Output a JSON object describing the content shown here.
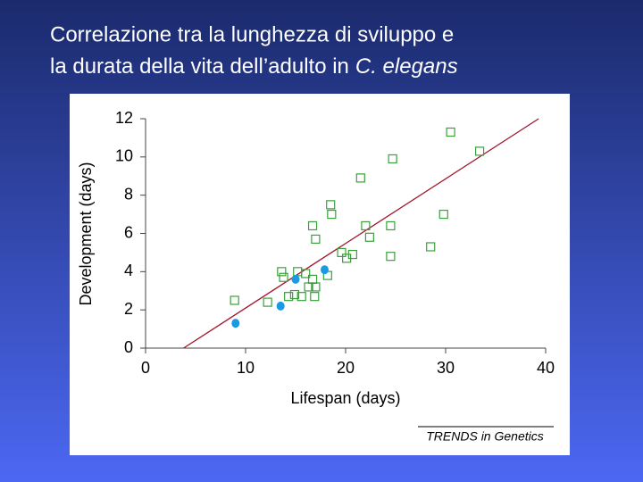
{
  "chart_data": {
    "type": "scatter",
    "title": [
      "Correlazione tra la lunghezza di sviluppo e",
      "la durata della vita dell’adulto in",
      "C. elegans"
    ],
    "x_label": "Lifespan (days)",
    "y_label": "Development (days)",
    "source": "TRENDS in Genetics",
    "xlim": [
      0,
      40
    ],
    "xticks": [
      0,
      10,
      20,
      30,
      40
    ],
    "ylim": [
      0,
      12
    ],
    "yticks": [
      0,
      2,
      4,
      6,
      8,
      10,
      12
    ],
    "series": [
      {
        "marker": "line",
        "color": "#a3162c",
        "x": [
          3.8,
          39.3
        ],
        "values": [
          0,
          12
        ]
      },
      {
        "marker": "square",
        "color": "#3aa03a",
        "x": [
          8.9,
          12.2,
          13.6,
          13.8,
          14.3,
          14.9,
          15.2,
          15.6,
          16.0,
          16.3,
          16.7,
          16.9,
          17.0,
          16.7,
          17.0,
          18.2,
          18.5,
          18.6,
          19.6,
          20.1,
          20.7,
          21.5,
          22.0,
          22.4,
          24.5,
          24.5,
          24.7,
          28.5,
          29.8,
          30.5,
          33.4
        ],
        "values": [
          2.5,
          2.4,
          4.0,
          3.7,
          2.7,
          2.8,
          4.0,
          2.7,
          3.9,
          3.2,
          3.6,
          2.7,
          3.2,
          6.4,
          5.7,
          3.8,
          7.5,
          7.0,
          5.0,
          4.7,
          4.9,
          8.9,
          6.4,
          5.8,
          6.4,
          4.8,
          9.9,
          5.3,
          7.0,
          11.3,
          10.3
        ]
      },
      {
        "marker": "circle",
        "color": "#1a9ae0",
        "x": [
          9.0,
          13.5,
          15.0,
          17.9
        ],
        "values": [
          1.3,
          2.2,
          3.6,
          4.1
        ]
      }
    ]
  }
}
